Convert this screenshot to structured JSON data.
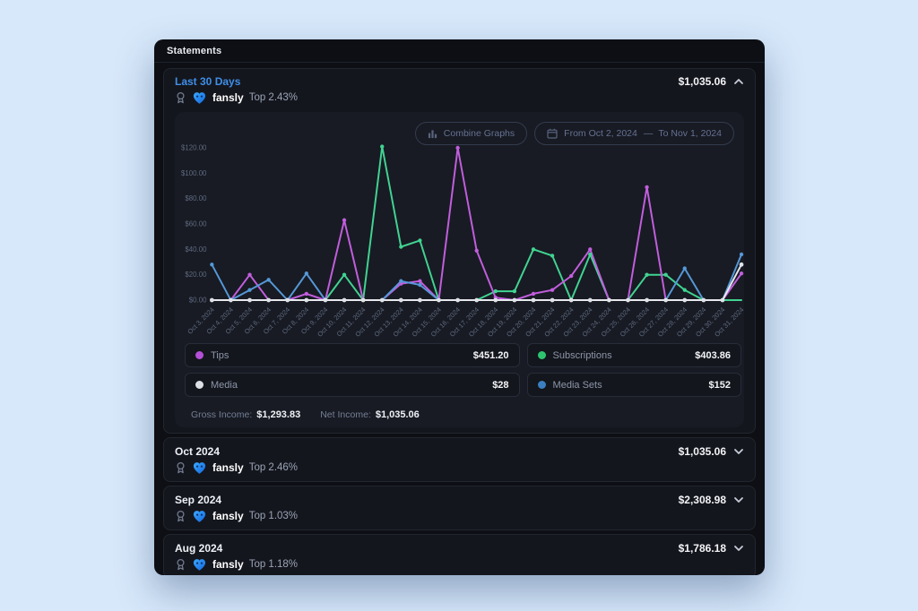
{
  "header": {
    "title": "Statements"
  },
  "brand": {
    "name": "fansly"
  },
  "rows": [
    {
      "period": "Last 30 Days",
      "amount": "$1,035.06",
      "top": "Top 2.43%",
      "expanded": true
    },
    {
      "period": "Oct 2024",
      "amount": "$1,035.06",
      "top": "Top 2.46%",
      "expanded": false
    },
    {
      "period": "Sep 2024",
      "amount": "$2,308.98",
      "top": "Top 1.03%",
      "expanded": false
    },
    {
      "period": "Aug 2024",
      "amount": "$1,786.18",
      "top": "Top 1.18%",
      "expanded": false
    }
  ],
  "controls": {
    "combine_label": "Combine Graphs",
    "date_from": "From Oct 2, 2024",
    "date_dash": "—",
    "date_to": "To Nov 1, 2024"
  },
  "legend": [
    {
      "label": "Tips",
      "value": "$451.20",
      "color": "#b44fd8"
    },
    {
      "label": "Subscriptions",
      "value": "$403.86",
      "color": "#2ec46f"
    },
    {
      "label": "Media",
      "value": "$28",
      "color": "#dcdfe4"
    },
    {
      "label": "Media Sets",
      "value": "$152",
      "color": "#3b7fc0"
    }
  ],
  "summary": {
    "gross_label": "Gross Income:",
    "gross_value": "$1,293.83",
    "net_label": "Net Income:",
    "net_value": "$1,035.06"
  },
  "chart_data": {
    "type": "line",
    "x": [
      "Oct 3, 2024",
      "Oct 4, 2024",
      "Oct 5, 2024",
      "Oct 6, 2024",
      "Oct 7, 2024",
      "Oct 8, 2024",
      "Oct 9, 2024",
      "Oct 10, 2024",
      "Oct 11, 2024",
      "Oct 12, 2024",
      "Oct 13, 2024",
      "Oct 14, 2024",
      "Oct 15, 2024",
      "Oct 16, 2024",
      "Oct 17, 2024",
      "Oct 18, 2024",
      "Oct 19, 2024",
      "Oct 20, 2024",
      "Oct 21, 2024",
      "Oct 22, 2024",
      "Oct 23, 2024",
      "Oct 24, 2024",
      "Oct 25, 2024",
      "Oct 26, 2024",
      "Oct 27, 2024",
      "Oct 28, 2024",
      "Oct 29, 2024",
      "Oct 30, 2024",
      "Oct 31, 2024"
    ],
    "series": [
      {
        "name": "Subscriptions",
        "color": "#41d392",
        "total": 403.86,
        "values": [
          0,
          0,
          0,
          0,
          0,
          0,
          0,
          20,
          0,
          121,
          42,
          47,
          0,
          0,
          0,
          7,
          7,
          40,
          35,
          0,
          36,
          0,
          0,
          20,
          20,
          8,
          0,
          0,
          0
        ]
      },
      {
        "name": "Tips",
        "color": "#c25ede",
        "total": 451.2,
        "values": [
          0,
          0,
          20,
          0,
          0,
          5,
          0,
          63,
          0,
          0,
          13,
          15,
          0,
          120,
          39,
          2,
          0,
          5,
          8,
          19,
          40,
          0,
          0,
          89,
          0,
          0,
          0,
          0,
          21
        ]
      },
      {
        "name": "Media Sets",
        "color": "#5598d8",
        "total": 152,
        "values": [
          28,
          0,
          8,
          16,
          0,
          21,
          0,
          0,
          0,
          0,
          15,
          12,
          0,
          0,
          0,
          0,
          0,
          0,
          0,
          0,
          0,
          0,
          0,
          0,
          0,
          25,
          0,
          0,
          36
        ]
      },
      {
        "name": "Media",
        "color": "#e6e8ec",
        "total": 28,
        "values": [
          0,
          0,
          0,
          0,
          0,
          0,
          0,
          0,
          0,
          0,
          0,
          0,
          0,
          0,
          0,
          0,
          0,
          0,
          0,
          0,
          0,
          0,
          0,
          0,
          0,
          0,
          0,
          0,
          28
        ]
      }
    ],
    "y_ticks": [
      "$120.00",
      "$100.00",
      "$80.00",
      "$60.00",
      "$40.00",
      "$20.00",
      "$0.00"
    ],
    "ylim": [
      0,
      120
    ],
    "grid": false,
    "legend_position": "bottom"
  }
}
